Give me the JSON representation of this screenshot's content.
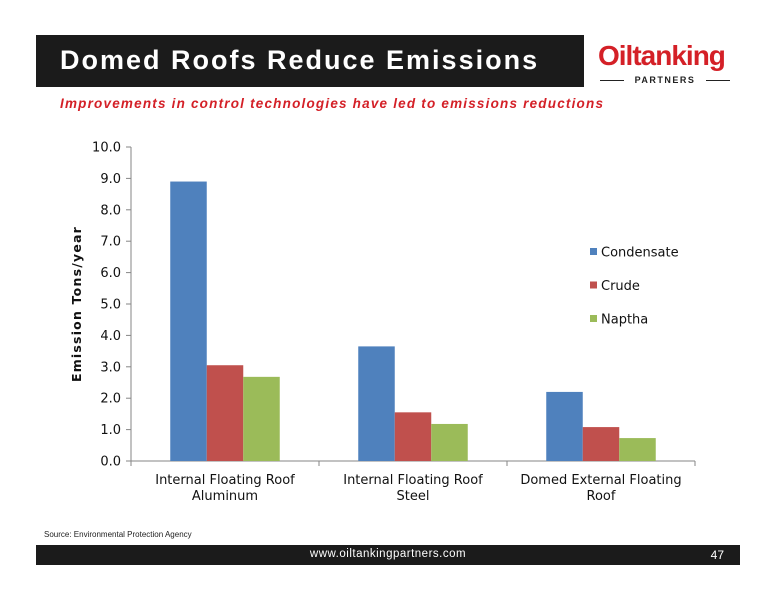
{
  "slide": {
    "title": "Domed Roofs Reduce Emissions",
    "subtitle": "Improvements in control technologies have led to emissions reductions",
    "source": "Source: Environmental Protection Agency",
    "footer_url": "www.oiltankingpartners.com",
    "page_number": "47"
  },
  "logo": {
    "main": "Oiltanking",
    "sub": "PARTNERS"
  },
  "colors": {
    "title_bar": "#1b1b1b",
    "accent_red": "#d42027"
  },
  "chart_data": {
    "type": "bar",
    "title": "",
    "xlabel": "",
    "ylabel": "Emission Tons/year",
    "ylim": [
      0,
      10
    ],
    "yticks": [
      "0.0",
      "1.0",
      "2.0",
      "3.0",
      "4.0",
      "5.0",
      "6.0",
      "7.0",
      "8.0",
      "9.0",
      "10.0"
    ],
    "grid": false,
    "legend_position": "right",
    "categories": [
      [
        "Internal Floating Roof",
        "Aluminum"
      ],
      [
        "Internal Floating Roof",
        "Steel"
      ],
      [
        "Domed External Floating",
        "Roof"
      ]
    ],
    "series": [
      {
        "name": "Condensate",
        "color": "#4f81bd",
        "values": [
          8.9,
          3.65,
          2.2
        ]
      },
      {
        "name": "Crude",
        "color": "#c0504d",
        "values": [
          3.05,
          1.55,
          1.08
        ]
      },
      {
        "name": "Naptha",
        "color": "#9bbb59",
        "values": [
          2.68,
          1.18,
          0.73
        ]
      }
    ]
  }
}
